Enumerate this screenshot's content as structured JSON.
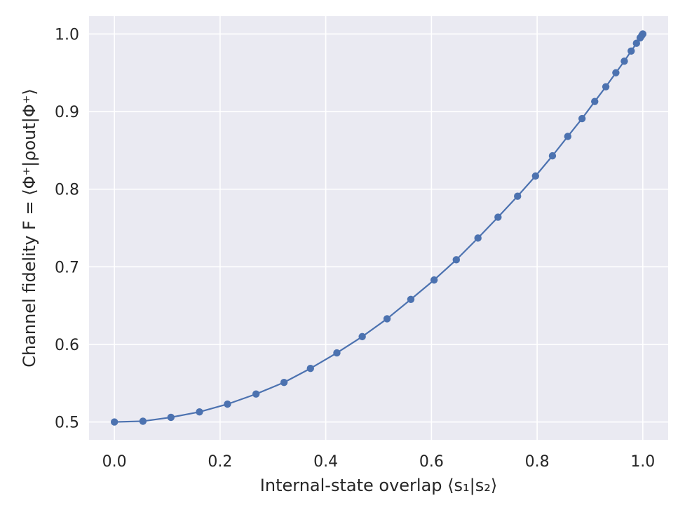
{
  "chart_data": {
    "type": "line",
    "title": "",
    "xlabel": "Internal-state overlap ⟨s₁|s₂⟩",
    "ylabel": "Channel fidelity F = ⟨Φ⁺|ρout|Φ⁺⟩",
    "xlim": [
      -0.048,
      1.048
    ],
    "ylim": [
      0.477,
      1.023
    ],
    "xticks": [
      0.0,
      0.2,
      0.4,
      0.6,
      0.8,
      1.0
    ],
    "xtick_labels": [
      "0.0",
      "0.2",
      "0.4",
      "0.6",
      "0.8",
      "1.0"
    ],
    "yticks": [
      0.5,
      0.6,
      0.7,
      0.8,
      0.9,
      1.0
    ],
    "ytick_labels": [
      "0.5",
      "0.6",
      "0.7",
      "0.8",
      "0.9",
      "1.0"
    ],
    "grid": true,
    "legend": "none",
    "series": [
      {
        "color": "#4c72b0",
        "marker": "circle",
        "x": [
          0.0,
          0.054,
          0.107,
          0.161,
          0.214,
          0.268,
          0.321,
          0.371,
          0.421,
          0.469,
          0.516,
          0.561,
          0.605,
          0.647,
          0.688,
          0.726,
          0.763,
          0.797,
          0.829,
          0.858,
          0.885,
          0.909,
          0.93,
          0.949,
          0.965,
          0.978,
          0.988,
          0.995,
          0.998,
          1.0
        ],
        "y": [
          0.5,
          0.501,
          0.506,
          0.513,
          0.523,
          0.536,
          0.551,
          0.569,
          0.589,
          0.61,
          0.633,
          0.658,
          0.683,
          0.709,
          0.737,
          0.764,
          0.791,
          0.817,
          0.843,
          0.868,
          0.891,
          0.913,
          0.932,
          0.95,
          0.965,
          0.978,
          0.988,
          0.995,
          0.998,
          1.0
        ]
      }
    ]
  }
}
